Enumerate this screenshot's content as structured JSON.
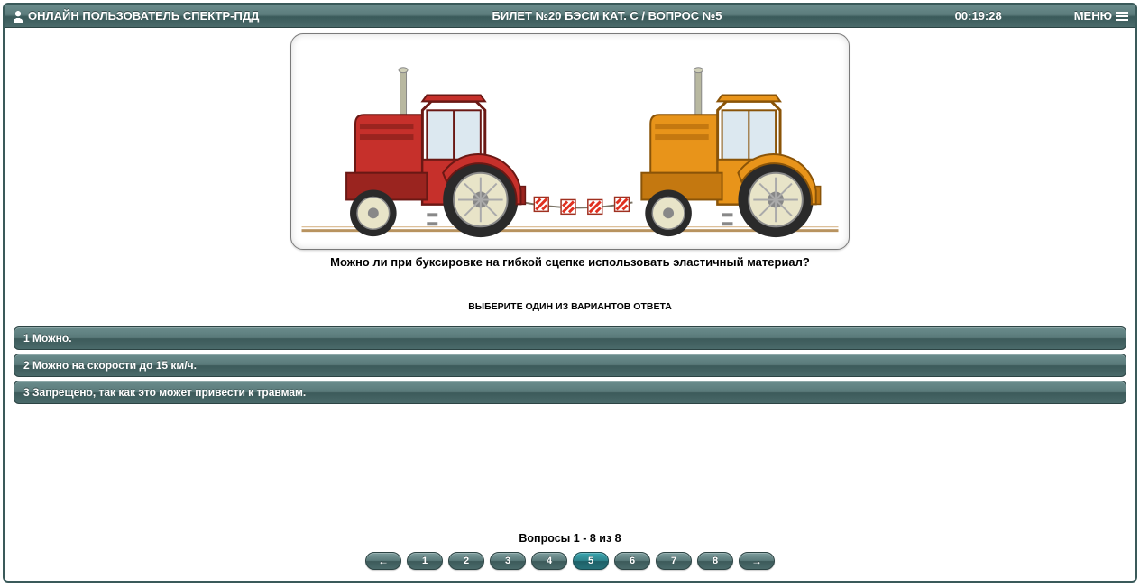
{
  "header": {
    "user_label": "ОНЛАЙН ПОЛЬЗОВАТЕЛЬ СПЕКТР-ПДД",
    "title": "БИЛЕТ №20 БЭСМ КАТ. C / ВОПРОС №5",
    "timer": "00:19:28",
    "menu_label": "МЕНЮ"
  },
  "question": {
    "text": "Можно ли при буксировке на гибкой сцепке использовать эластичный материал?",
    "instruction": "ВЫБЕРИТЕ ОДИН ИЗ ВАРИАНТОВ ОТВЕТА"
  },
  "answers": [
    "1 Можно.",
    "2 Можно на скорости до 15 км/ч.",
    "3 Запрещено, так как это может привести к травмам."
  ],
  "pager": {
    "label": "Вопросы 1 - 8 из 8",
    "pages": [
      "1",
      "2",
      "3",
      "4",
      "5",
      "6",
      "7",
      "8"
    ],
    "current": "5"
  },
  "illustration": {
    "type": "diagram",
    "description": "Two tractors connected by flexible tow coupling with warning flags",
    "tractor1_body": "#c6302b",
    "tractor1_cab": "#b02824",
    "tractor2_body": "#e8941a",
    "tractor2_cab": "#d4800e",
    "wheel_rim": "#e8e4c8",
    "wheel_tire": "#2a2a2a",
    "exhaust": "#b8b8a0",
    "ground": "#b8935f",
    "rope": "#7a7264",
    "flag_bg": "#ffffff",
    "flag_stripe": "#e03020",
    "flag_border": "#a03020",
    "bg": "#ffffff"
  },
  "colors": {
    "panel_grad_top": "#6a8c8c",
    "panel_grad_mid1": "#5a7a7a",
    "panel_grad_mid2": "#3c5a5a",
    "panel_grad_bot": "#4a6a6a",
    "panel_border": "#2c4444",
    "current_page": "#2e848c",
    "text_light": "#ffffff",
    "text_dark": "#000000",
    "frame_border": "#3a5a5a"
  },
  "typography": {
    "header_size_pt": 10,
    "question_size_pt": 10,
    "answer_size_pt": 9,
    "pager_size_pt": 9
  }
}
